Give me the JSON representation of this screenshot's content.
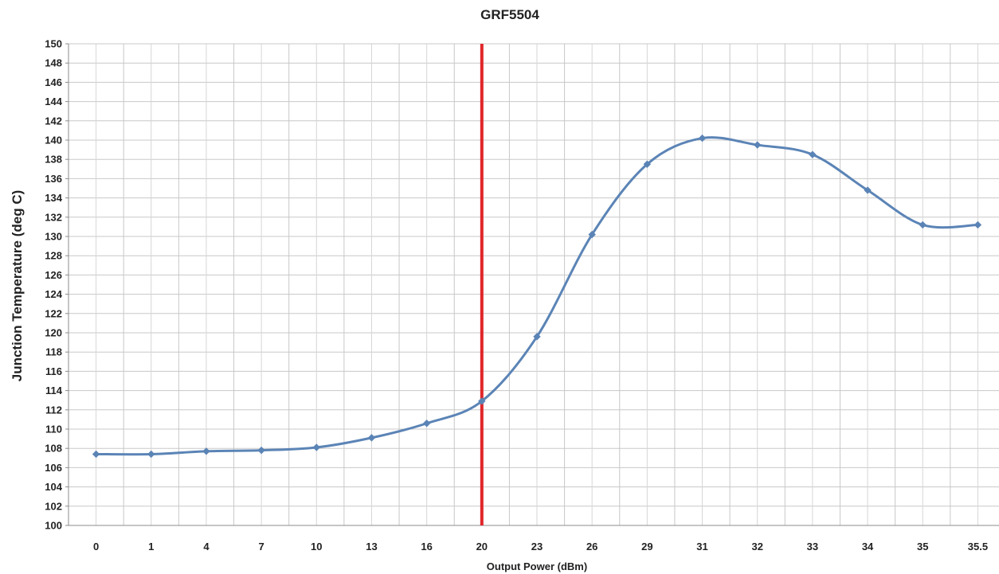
{
  "chart_data": {
    "type": "line",
    "title": "GRF5504",
    "xlabel": "Output Power (dBm)",
    "ylabel": "Junction Temperature (deg C)",
    "categories": [
      "0",
      "1",
      "4",
      "7",
      "10",
      "13",
      "16",
      "20",
      "23",
      "26",
      "29",
      "31",
      "32",
      "33",
      "34",
      "35",
      "35.5"
    ],
    "series": [
      {
        "values": [
          107.4,
          107.4,
          107.7,
          107.8,
          108.1,
          109.1,
          110.6,
          112.9,
          119.6,
          130.2,
          137.5,
          140.2,
          139.5,
          138.5,
          134.8,
          131.2,
          131.2
        ],
        "color": "#5B84B6",
        "marker": "diamond"
      }
    ],
    "ylim": [
      100,
      150
    ],
    "ystep": 2,
    "reference_line": {
      "orientation": "vertical",
      "at_category": "20",
      "color": "#E0262A"
    },
    "grid": "on (major and minor vertical, major horizontal)",
    "legend": "none"
  }
}
